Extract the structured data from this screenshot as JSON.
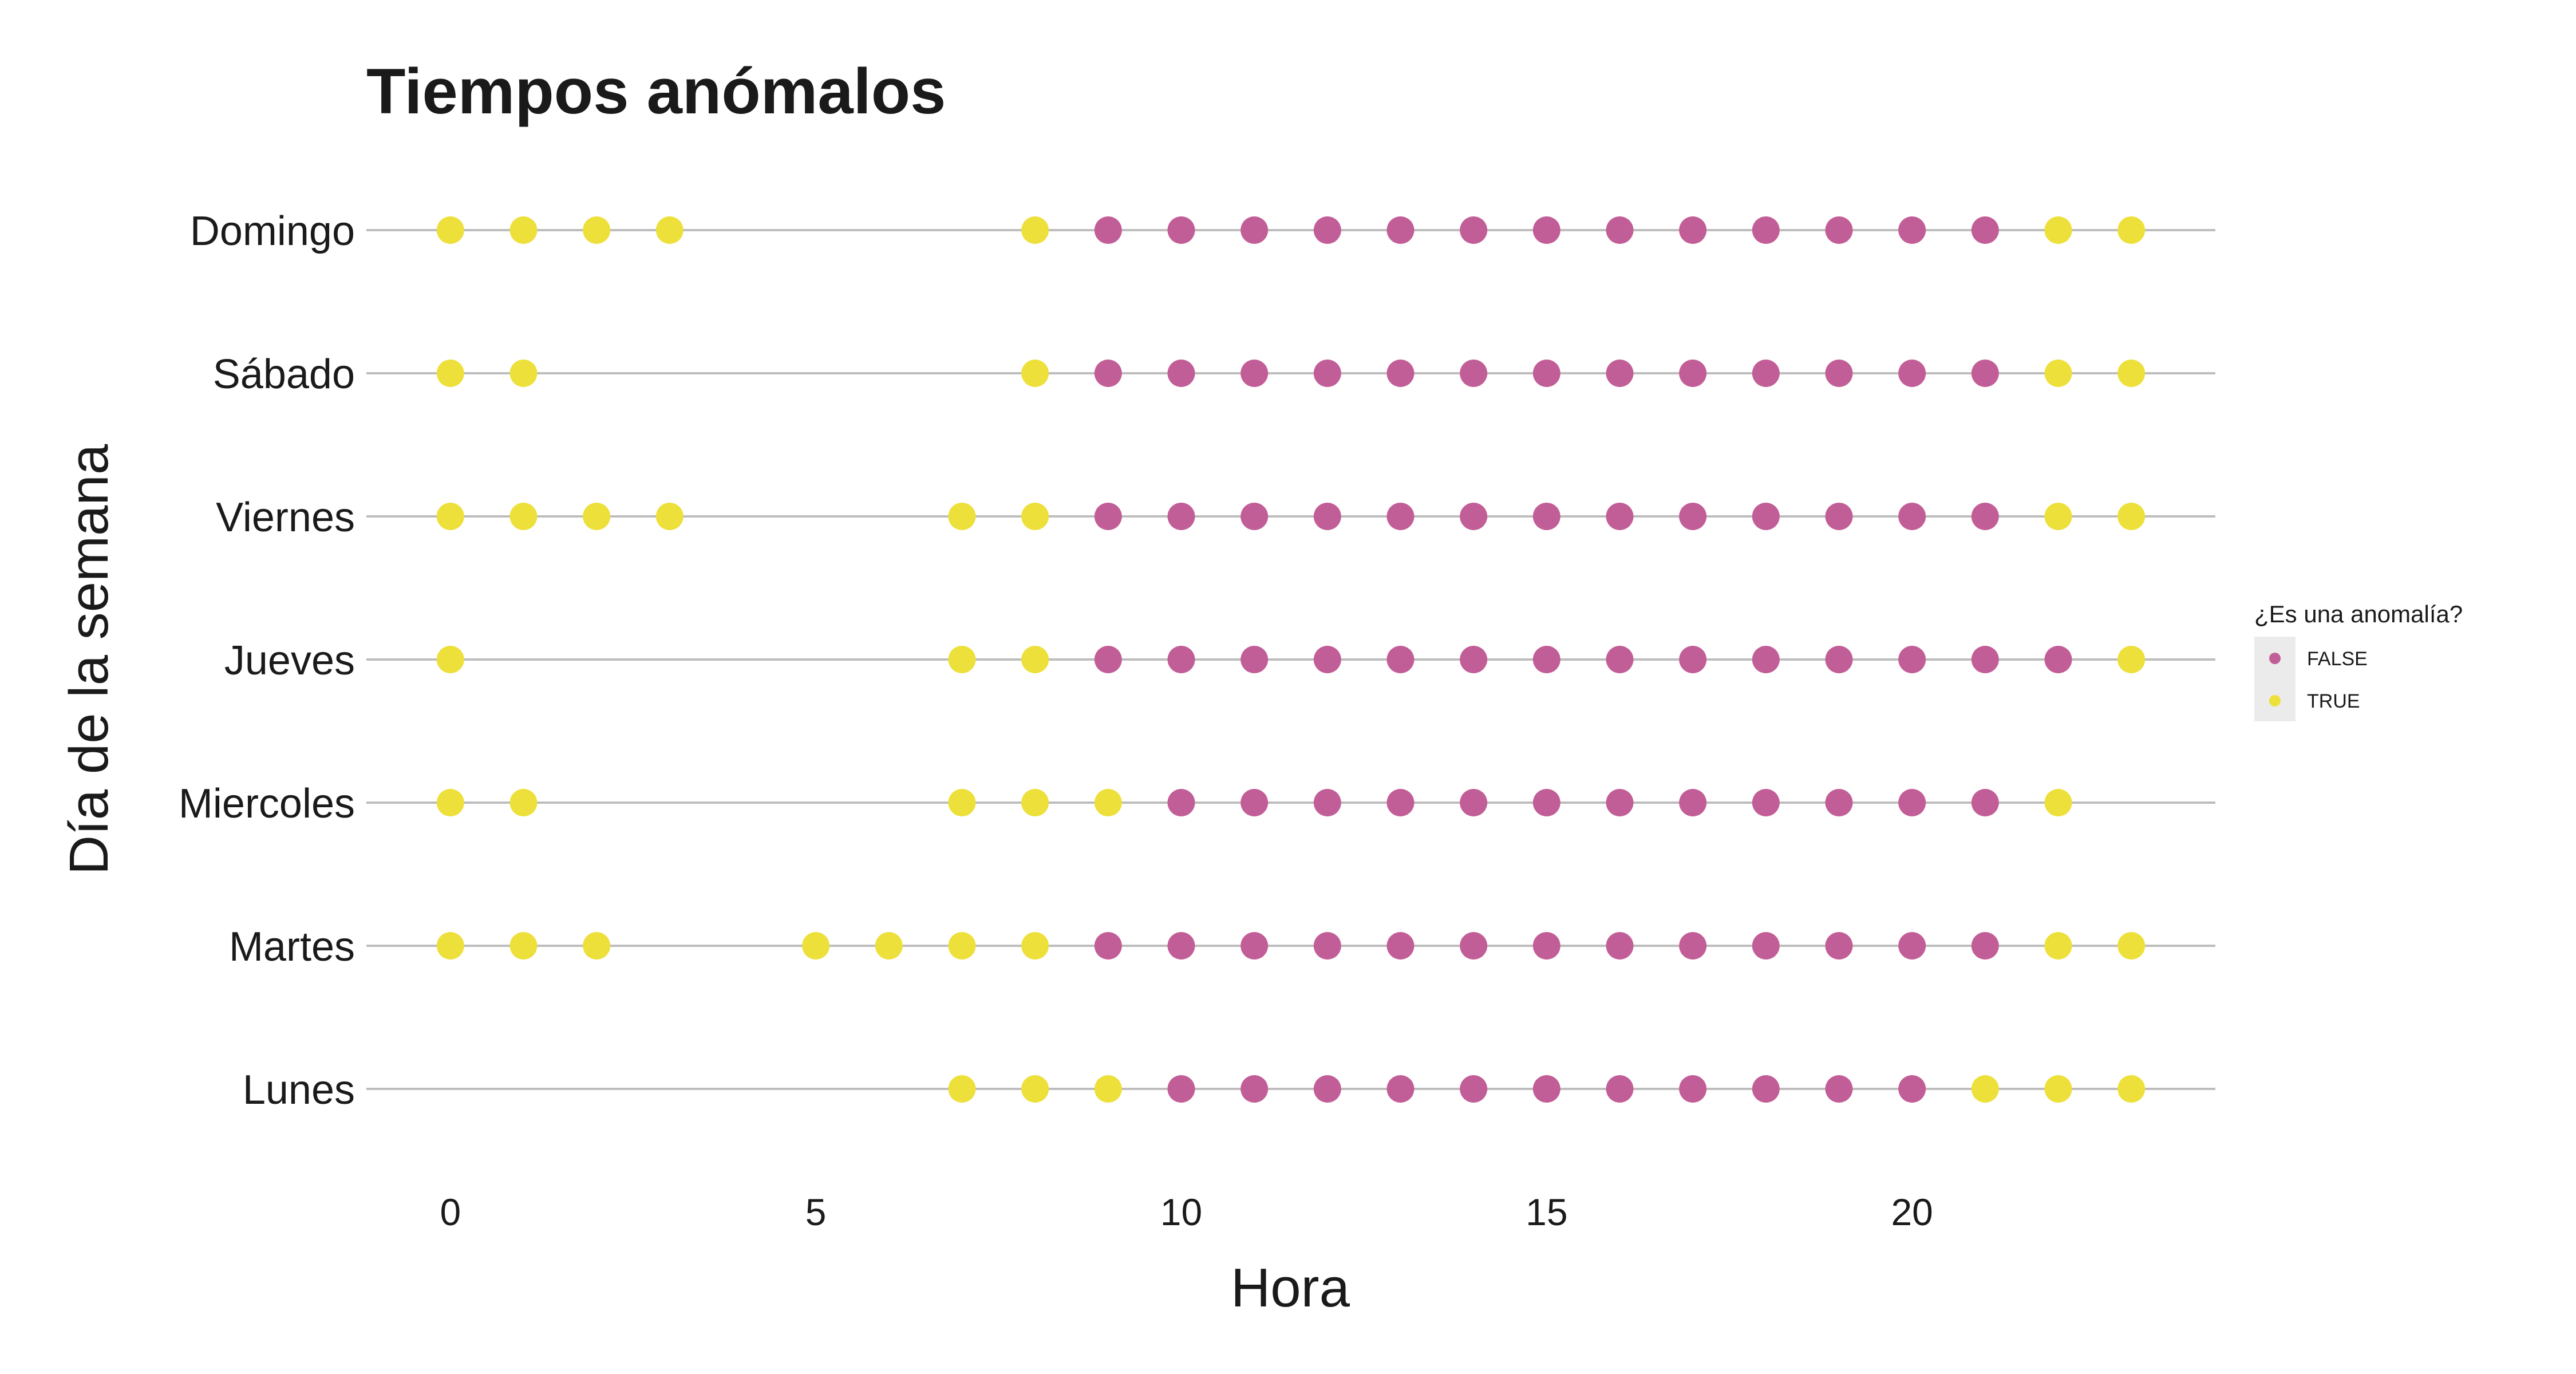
{
  "chart_data": {
    "type": "scatter",
    "title": "Tiempos anómalos",
    "xlabel": "Hora",
    "ylabel": "Día de la semana",
    "xlim": [
      -1.15,
      24.15
    ],
    "x_ticks": [
      0,
      5,
      10,
      15,
      20
    ],
    "categories": [
      "Lunes",
      "Martes",
      "Miercoles",
      "Jueves",
      "Viernes",
      "Sábado",
      "Domingo"
    ],
    "grid": "horizontal",
    "legend": {
      "title": "¿Es una anomalía?",
      "position": "right",
      "entries": [
        {
          "label": "FALSE",
          "color": "#c25e97"
        },
        {
          "label": "TRUE",
          "color": "#ede03b"
        }
      ]
    },
    "series": [
      {
        "name": "Lunes",
        "false_hours": [
          10,
          11,
          12,
          13,
          14,
          15,
          16,
          17,
          18,
          19,
          20
        ],
        "true_hours": [
          7,
          8,
          9,
          21,
          22,
          23
        ]
      },
      {
        "name": "Martes",
        "false_hours": [
          9,
          10,
          11,
          12,
          13,
          14,
          15,
          16,
          17,
          18,
          19,
          20,
          21
        ],
        "true_hours": [
          0,
          1,
          2,
          5,
          6,
          7,
          8,
          22,
          23
        ]
      },
      {
        "name": "Miercoles",
        "false_hours": [
          10,
          11,
          12,
          13,
          14,
          15,
          16,
          17,
          18,
          19,
          20,
          21
        ],
        "true_hours": [
          0,
          1,
          7,
          8,
          9,
          22
        ]
      },
      {
        "name": "Jueves",
        "false_hours": [
          9,
          10,
          11,
          12,
          13,
          14,
          15,
          16,
          17,
          18,
          19,
          20,
          21,
          22
        ],
        "true_hours": [
          0,
          7,
          8,
          23
        ]
      },
      {
        "name": "Viernes",
        "false_hours": [
          9,
          10,
          11,
          12,
          13,
          14,
          15,
          16,
          17,
          18,
          19,
          20,
          21
        ],
        "true_hours": [
          0,
          1,
          2,
          3,
          7,
          8,
          22,
          23
        ]
      },
      {
        "name": "Sábado",
        "false_hours": [
          9,
          10,
          11,
          12,
          13,
          14,
          15,
          16,
          17,
          18,
          19,
          20,
          21
        ],
        "true_hours": [
          0,
          1,
          8,
          22,
          23
        ]
      },
      {
        "name": "Domingo",
        "false_hours": [
          9,
          10,
          11,
          12,
          13,
          14,
          15,
          16,
          17,
          18,
          19,
          20,
          21
        ],
        "true_hours": [
          0,
          1,
          2,
          3,
          8,
          22,
          23
        ]
      }
    ]
  }
}
